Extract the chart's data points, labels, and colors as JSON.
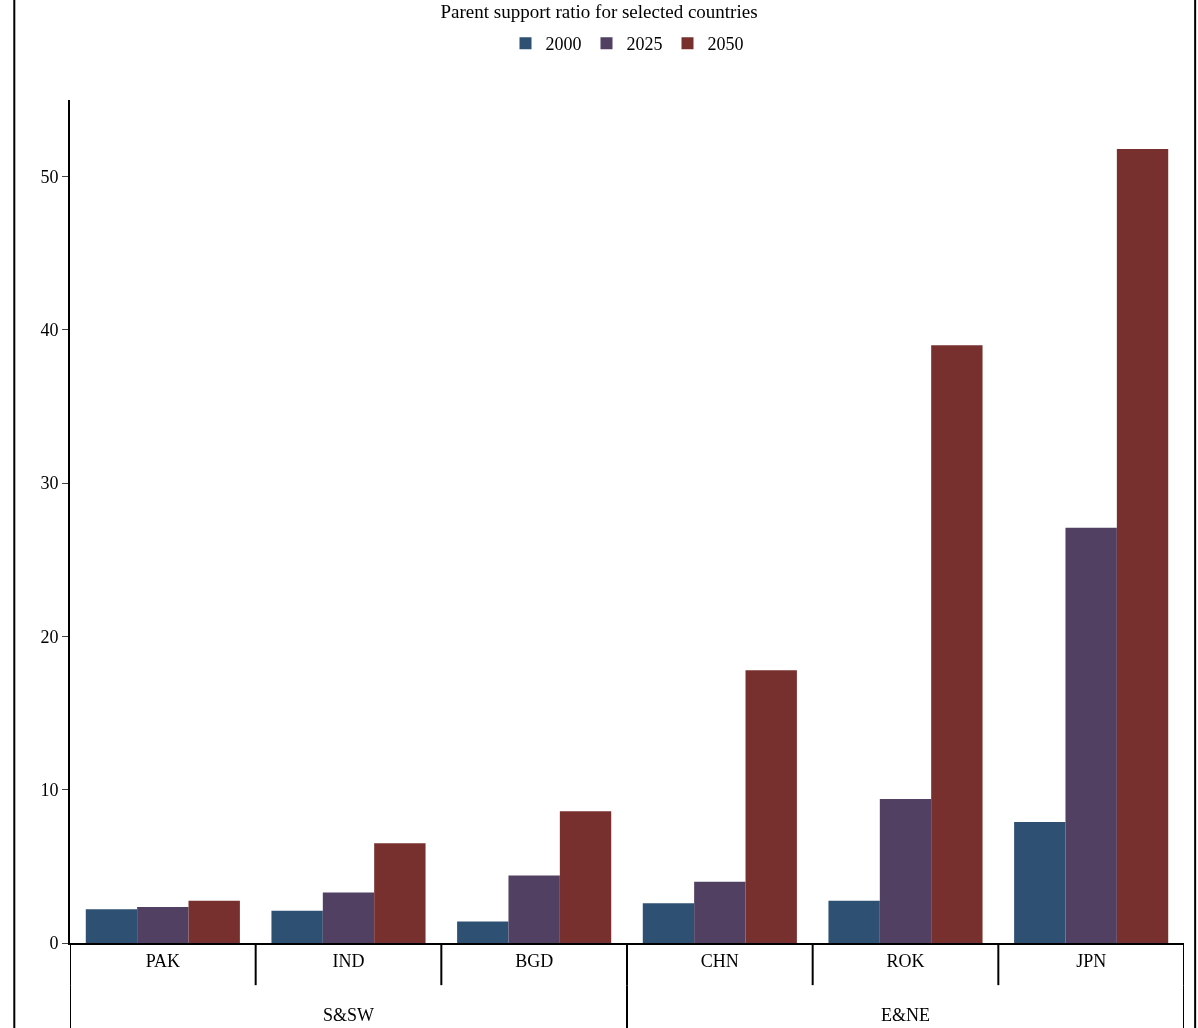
{
  "chart_data": {
    "type": "bar",
    "title": "Parent support ratio for selected countries",
    "categories": [
      "PAK",
      "IND",
      "BGD",
      "CHN",
      "ROK",
      "JPN"
    ],
    "series": [
      {
        "name": "2000",
        "color": "#2e5173",
        "values": [
          2.2,
          2.1,
          1.4,
          2.6,
          2.75,
          7.9
        ]
      },
      {
        "name": "2025",
        "color": "#514061",
        "values": [
          2.35,
          3.3,
          4.4,
          4.0,
          9.4,
          27.1
        ]
      },
      {
        "name": "2050",
        "color": "#78302f",
        "values": [
          2.75,
          6.5,
          8.6,
          17.8,
          39.0,
          51.8
        ]
      }
    ],
    "ylim": [
      0,
      55
    ],
    "yticks": [
      0,
      10,
      20,
      30,
      40,
      50
    ],
    "legend": "top",
    "annotations": [
      "S&SW",
      "E&NE"
    ]
  }
}
